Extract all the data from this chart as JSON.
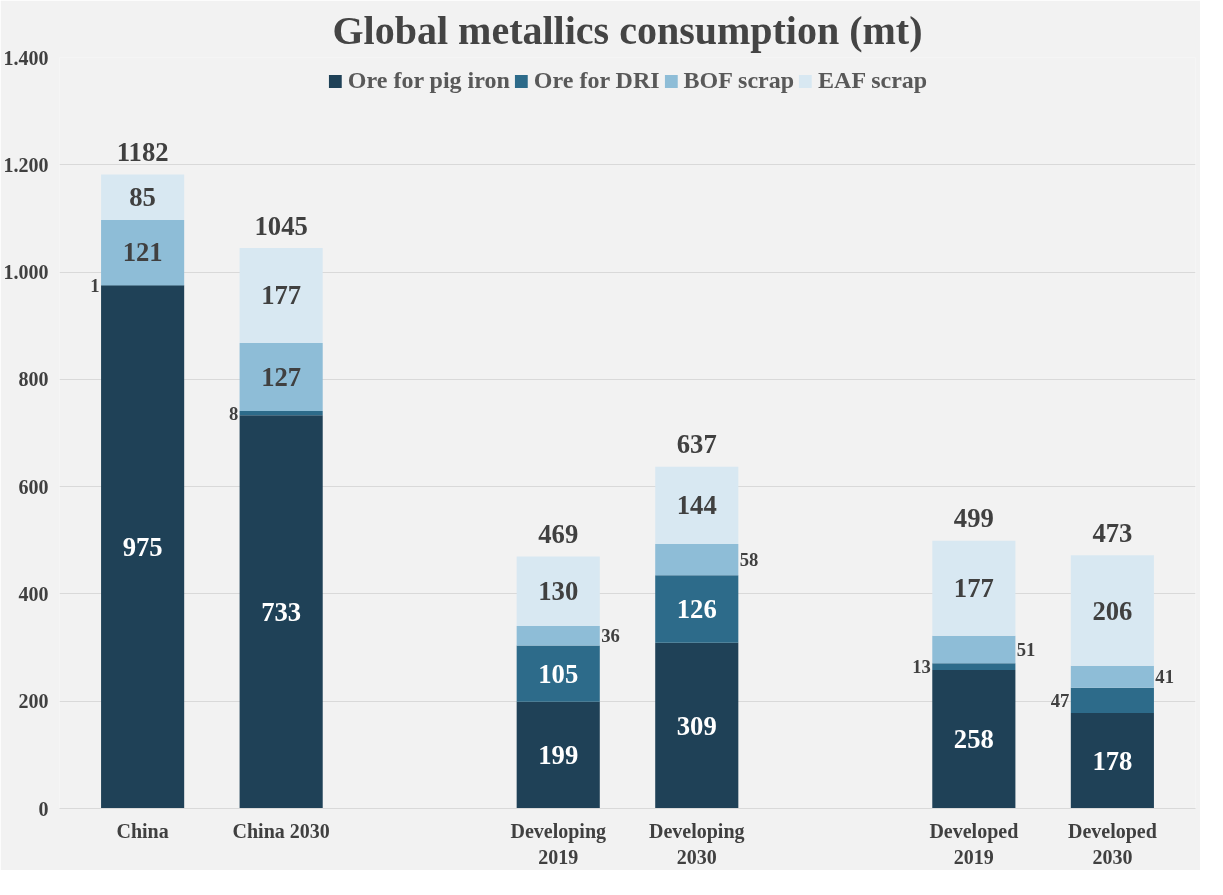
{
  "chart_data": {
    "type": "bar",
    "title": "Global metallics consumption (mt)",
    "stacked": true,
    "categories": [
      "China",
      "China 2030",
      null,
      "Developing\n2019",
      "Developing\n2030",
      null,
      "Developed\n2019",
      "Developed\n2030"
    ],
    "series": [
      {
        "name": "Ore for pig iron",
        "color": "#1f4157",
        "values": [
          975,
          733,
          null,
          199,
          309,
          null,
          258,
          178
        ]
      },
      {
        "name": "Ore for DRI",
        "color": "#2d6b8a",
        "values": [
          1,
          8,
          null,
          105,
          126,
          null,
          13,
          47
        ]
      },
      {
        "name": "BOF scrap",
        "color": "#8ebdd7",
        "values": [
          121,
          127,
          null,
          36,
          58,
          null,
          51,
          41
        ]
      },
      {
        "name": "EAF scrap",
        "color": "#d8e8f2",
        "values": [
          85,
          177,
          null,
          130,
          144,
          null,
          177,
          206
        ]
      }
    ],
    "totals": [
      "1182",
      "1045",
      null,
      "469",
      "637",
      null,
      "499",
      "473"
    ],
    "data_labels": true,
    "ylim": [
      0,
      1400
    ],
    "yticks": [
      0,
      200,
      400,
      600,
      800,
      {
        "value": 1000,
        "label": "1.000"
      },
      {
        "value": 1200,
        "label": "1.200"
      },
      {
        "value": 1400,
        "label": "1.400"
      }
    ],
    "grid": "y",
    "legend": "top"
  }
}
